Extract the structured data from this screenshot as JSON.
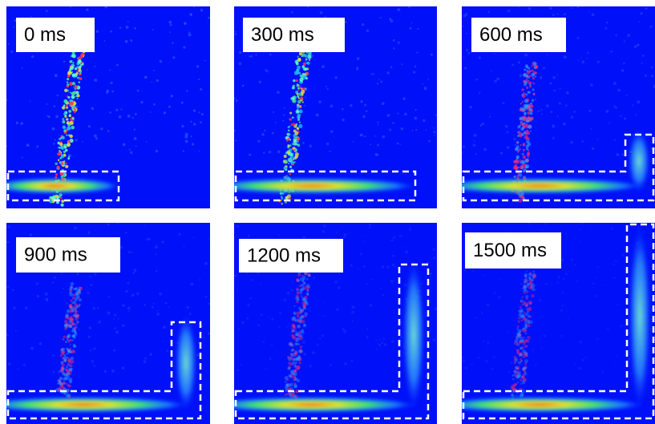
{
  "panels": [
    {
      "label": "0 ms"
    },
    {
      "label": "300 ms"
    },
    {
      "label": "600 ms"
    },
    {
      "label": "900 ms"
    },
    {
      "label": "1200 ms"
    },
    {
      "label": "1500 ms"
    }
  ]
}
